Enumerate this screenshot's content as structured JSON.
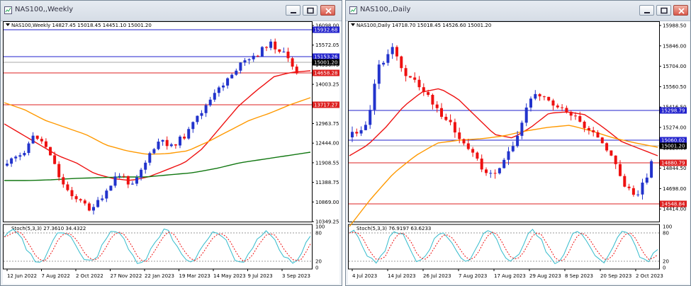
{
  "left": {
    "window_title": "NAS100,,Weekly",
    "header": "NAS100,Weekly  14827.45 15018.45 14451.10 15001.20",
    "stoch_header": "Stoch(5,3,3) 27.3610 34.4322",
    "price_ticks": [
      "16098.00",
      "15572.05",
      "14536.75",
      "14003.25",
      "13483.50",
      "12963.75",
      "12444.00",
      "11908.55",
      "11388.75",
      "10869.00",
      "10349.25"
    ],
    "level_labels": [
      {
        "text": "15932.68",
        "color": "#2222cc"
      },
      {
        "text": "15153.26",
        "color": "#2222cc"
      },
      {
        "text": "15001.20",
        "color": "#000000"
      },
      {
        "text": "14658.28",
        "color": "#dd2020"
      },
      {
        "text": "13717.27",
        "color": "#dd2020"
      }
    ],
    "stoch_ticks": [
      "100",
      "80",
      "20",
      "0"
    ],
    "dates": [
      "12 Jun 2022",
      "7 Aug 2022",
      "2 Oct 2022",
      "27 Nov 2022",
      "22 Jan 2023",
      "19 Mar 2023",
      "14 May 2023",
      "9 Jul 2023",
      "3 Sep 2023"
    ]
  },
  "right": {
    "window_title": "NAS100,,Daily",
    "header": "NAS100,Daily  14718.70 15018.45 14526.60 15001.20",
    "stoch_header": "Stoch(5,3,3) 76.9197 63.6233",
    "price_ticks": [
      "15988.50",
      "15846.00",
      "15704.00",
      "15560.50",
      "15416.50",
      "15274.00",
      "15128.00",
      "14844.50",
      "14698.00",
      "14414.00"
    ],
    "level_labels": [
      {
        "text": "15298.79",
        "color": "#2222cc"
      },
      {
        "text": "15060.02",
        "color": "#2222cc"
      },
      {
        "text": "15001.20",
        "color": "#000000"
      },
      {
        "text": "14880.79",
        "color": "#dd2020"
      },
      {
        "text": "14548.84",
        "color": "#dd2020"
      }
    ],
    "stoch_ticks": [
      "100",
      "80",
      "20",
      "0"
    ],
    "dates": [
      "4 Jul 2023",
      "14 Jul 2023",
      "26 Jul 2023",
      "7 Aug 2023",
      "17 Aug 2023",
      "29 Aug 2023",
      "8 Sep 2023",
      "20 Sep 2023",
      "2 Oct 2023"
    ]
  },
  "colors": {
    "bull": "#2233cc",
    "bear": "#ee1111",
    "ma_fast": "#ee1111",
    "ma_mid": "#ff9900",
    "ma_slow": "#117711",
    "stoch_main": "#33bbcc",
    "stoch_signal": "#ee1111"
  }
}
